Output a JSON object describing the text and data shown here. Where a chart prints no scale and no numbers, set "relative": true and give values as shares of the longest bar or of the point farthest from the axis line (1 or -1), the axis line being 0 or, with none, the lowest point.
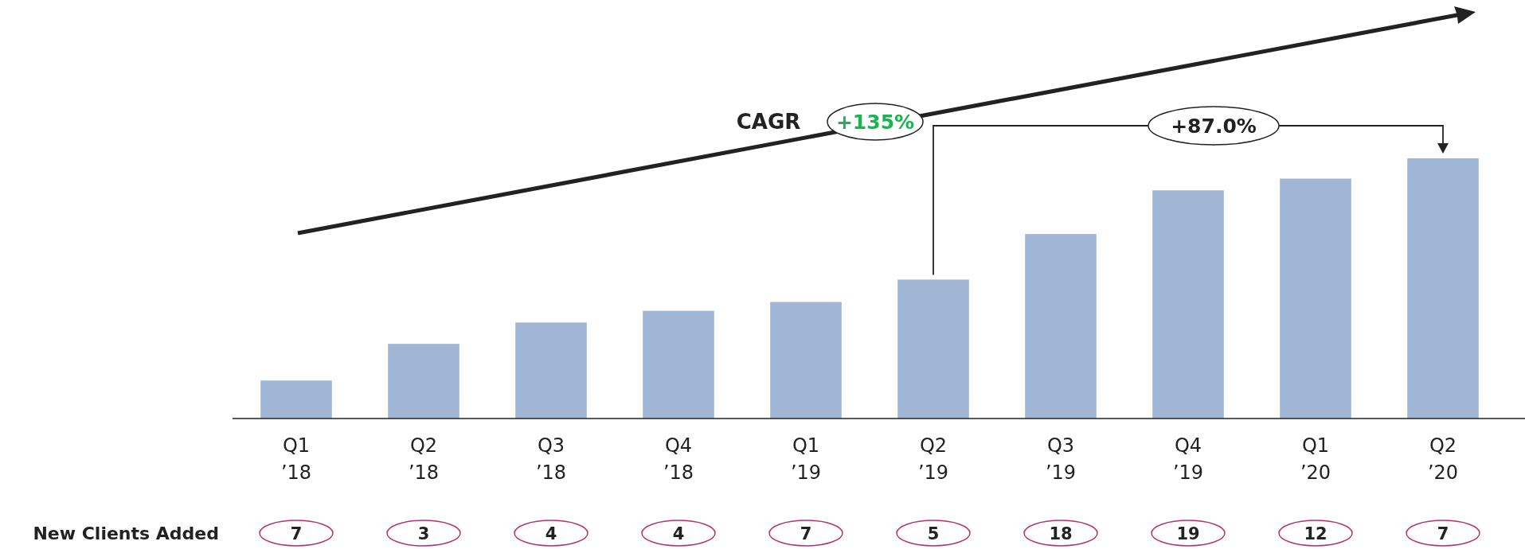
{
  "chart_data": {
    "type": "bar",
    "relative": true,
    "categories": [
      "Q1 ’18",
      "Q2 ’18",
      "Q3 ’18",
      "Q4 ’18",
      "Q1 ’19",
      "Q2 ’19",
      "Q3 ’19",
      "Q4 ’19",
      "Q1 ’20",
      "Q2 ’20"
    ],
    "values": [
      0.146,
      0.287,
      0.369,
      0.414,
      0.448,
      0.534,
      0.709,
      0.877,
      0.922,
      1
    ],
    "color": "#a1b5d5",
    "annotations": [
      "CAGR",
      "+135%",
      "+87.0%",
      "New Clients Added",
      "7",
      "3",
      "4",
      "4",
      "7",
      "5",
      "18",
      "19",
      "12",
      "7"
    ]
  }
}
